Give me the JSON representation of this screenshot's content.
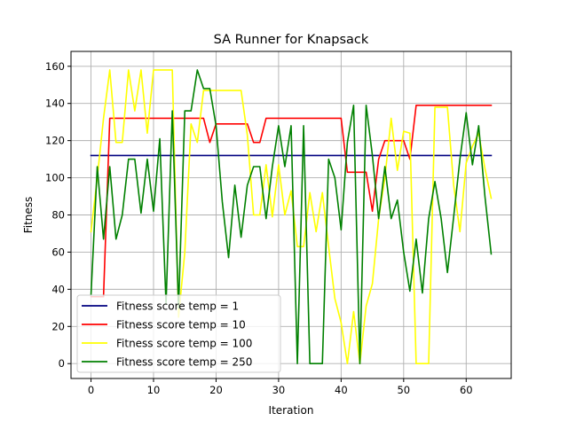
{
  "chart_data": {
    "type": "line",
    "title": "SA Runner for Knapsack",
    "xlabel": "Iteration",
    "ylabel": "Fitness",
    "xlim": [
      -3.2,
      67.2
    ],
    "ylim": [
      -8,
      168
    ],
    "xticks": [
      0,
      10,
      20,
      30,
      40,
      50,
      60
    ],
    "yticks": [
      0,
      20,
      40,
      60,
      80,
      100,
      120,
      140,
      160
    ],
    "grid": true,
    "legend_position": "bottom-left",
    "x": [
      0,
      1,
      2,
      3,
      4,
      5,
      6,
      7,
      8,
      9,
      10,
      11,
      12,
      13,
      14,
      15,
      16,
      17,
      18,
      19,
      20,
      21,
      22,
      23,
      24,
      25,
      26,
      27,
      28,
      29,
      30,
      31,
      32,
      33,
      34,
      35,
      36,
      37,
      38,
      39,
      40,
      41,
      42,
      43,
      44,
      45,
      46,
      47,
      48,
      49,
      50,
      51,
      52,
      53,
      54,
      55,
      56,
      57,
      58,
      59,
      60,
      61,
      62,
      63,
      64
    ],
    "series": [
      {
        "name": "Fitness score temp = 1",
        "color": "#000080",
        "values": [
          112,
          112,
          112,
          112,
          112,
          112,
          112,
          112,
          112,
          112,
          112,
          112,
          112,
          112,
          112,
          112,
          112,
          112,
          112,
          112,
          112,
          112,
          112,
          112,
          112,
          112,
          112,
          112,
          112,
          112,
          112,
          112,
          112,
          112,
          112,
          112,
          112,
          112,
          112,
          112,
          112,
          112,
          112,
          112,
          112,
          112,
          112,
          112,
          112,
          112,
          112,
          112,
          112,
          112,
          112,
          112,
          112,
          112,
          112,
          112,
          112,
          112,
          112,
          112,
          112
        ]
      },
      {
        "name": "Fitness score temp = 10",
        "color": "#ff0000",
        "values": [
          36,
          36,
          36,
          132,
          132,
          132,
          132,
          132,
          132,
          132,
          132,
          132,
          132,
          132,
          132,
          132,
          132,
          132,
          132,
          119,
          129,
          129,
          129,
          129,
          129,
          129,
          119,
          119,
          132,
          132,
          132,
          132,
          132,
          132,
          132,
          132,
          132,
          132,
          132,
          132,
          132,
          103,
          103,
          103,
          103,
          82,
          110,
          120,
          120,
          120,
          120,
          110,
          139,
          139,
          139,
          139,
          139,
          139,
          139,
          139,
          139,
          139,
          139,
          139,
          139
        ]
      },
      {
        "name": "Fitness score temp = 100",
        "color": "#ffff00",
        "values": [
          71,
          100,
          132,
          158,
          119,
          119,
          158,
          136,
          158,
          124,
          158,
          158,
          158,
          158,
          25,
          60,
          129,
          119,
          147,
          147,
          147,
          147,
          147,
          147,
          147,
          123,
          80,
          80,
          107,
          79,
          107,
          80,
          93,
          63,
          63,
          92,
          71,
          92,
          63,
          35,
          22,
          0,
          28,
          0,
          31,
          43,
          78,
          100,
          132,
          104,
          125,
          124,
          0,
          0,
          0,
          138,
          138,
          138,
          96,
          71,
          108,
          117,
          124,
          105,
          89
        ]
      },
      {
        "name": "Fitness score temp = 250",
        "color": "#008000",
        "values": [
          37,
          106,
          67,
          106,
          67,
          80,
          110,
          110,
          81,
          110,
          82,
          121,
          32,
          136,
          30,
          136,
          136,
          158,
          148,
          148,
          128,
          87,
          57,
          96,
          68,
          96,
          106,
          106,
          78,
          106,
          128,
          106,
          128,
          0,
          128,
          0,
          0,
          0,
          110,
          100,
          72,
          119,
          139,
          0,
          139,
          112,
          78,
          106,
          78,
          88,
          60,
          39,
          67,
          38,
          78,
          98,
          78,
          49,
          79,
          110,
          135,
          107,
          128,
          90,
          59
        ]
      }
    ]
  }
}
